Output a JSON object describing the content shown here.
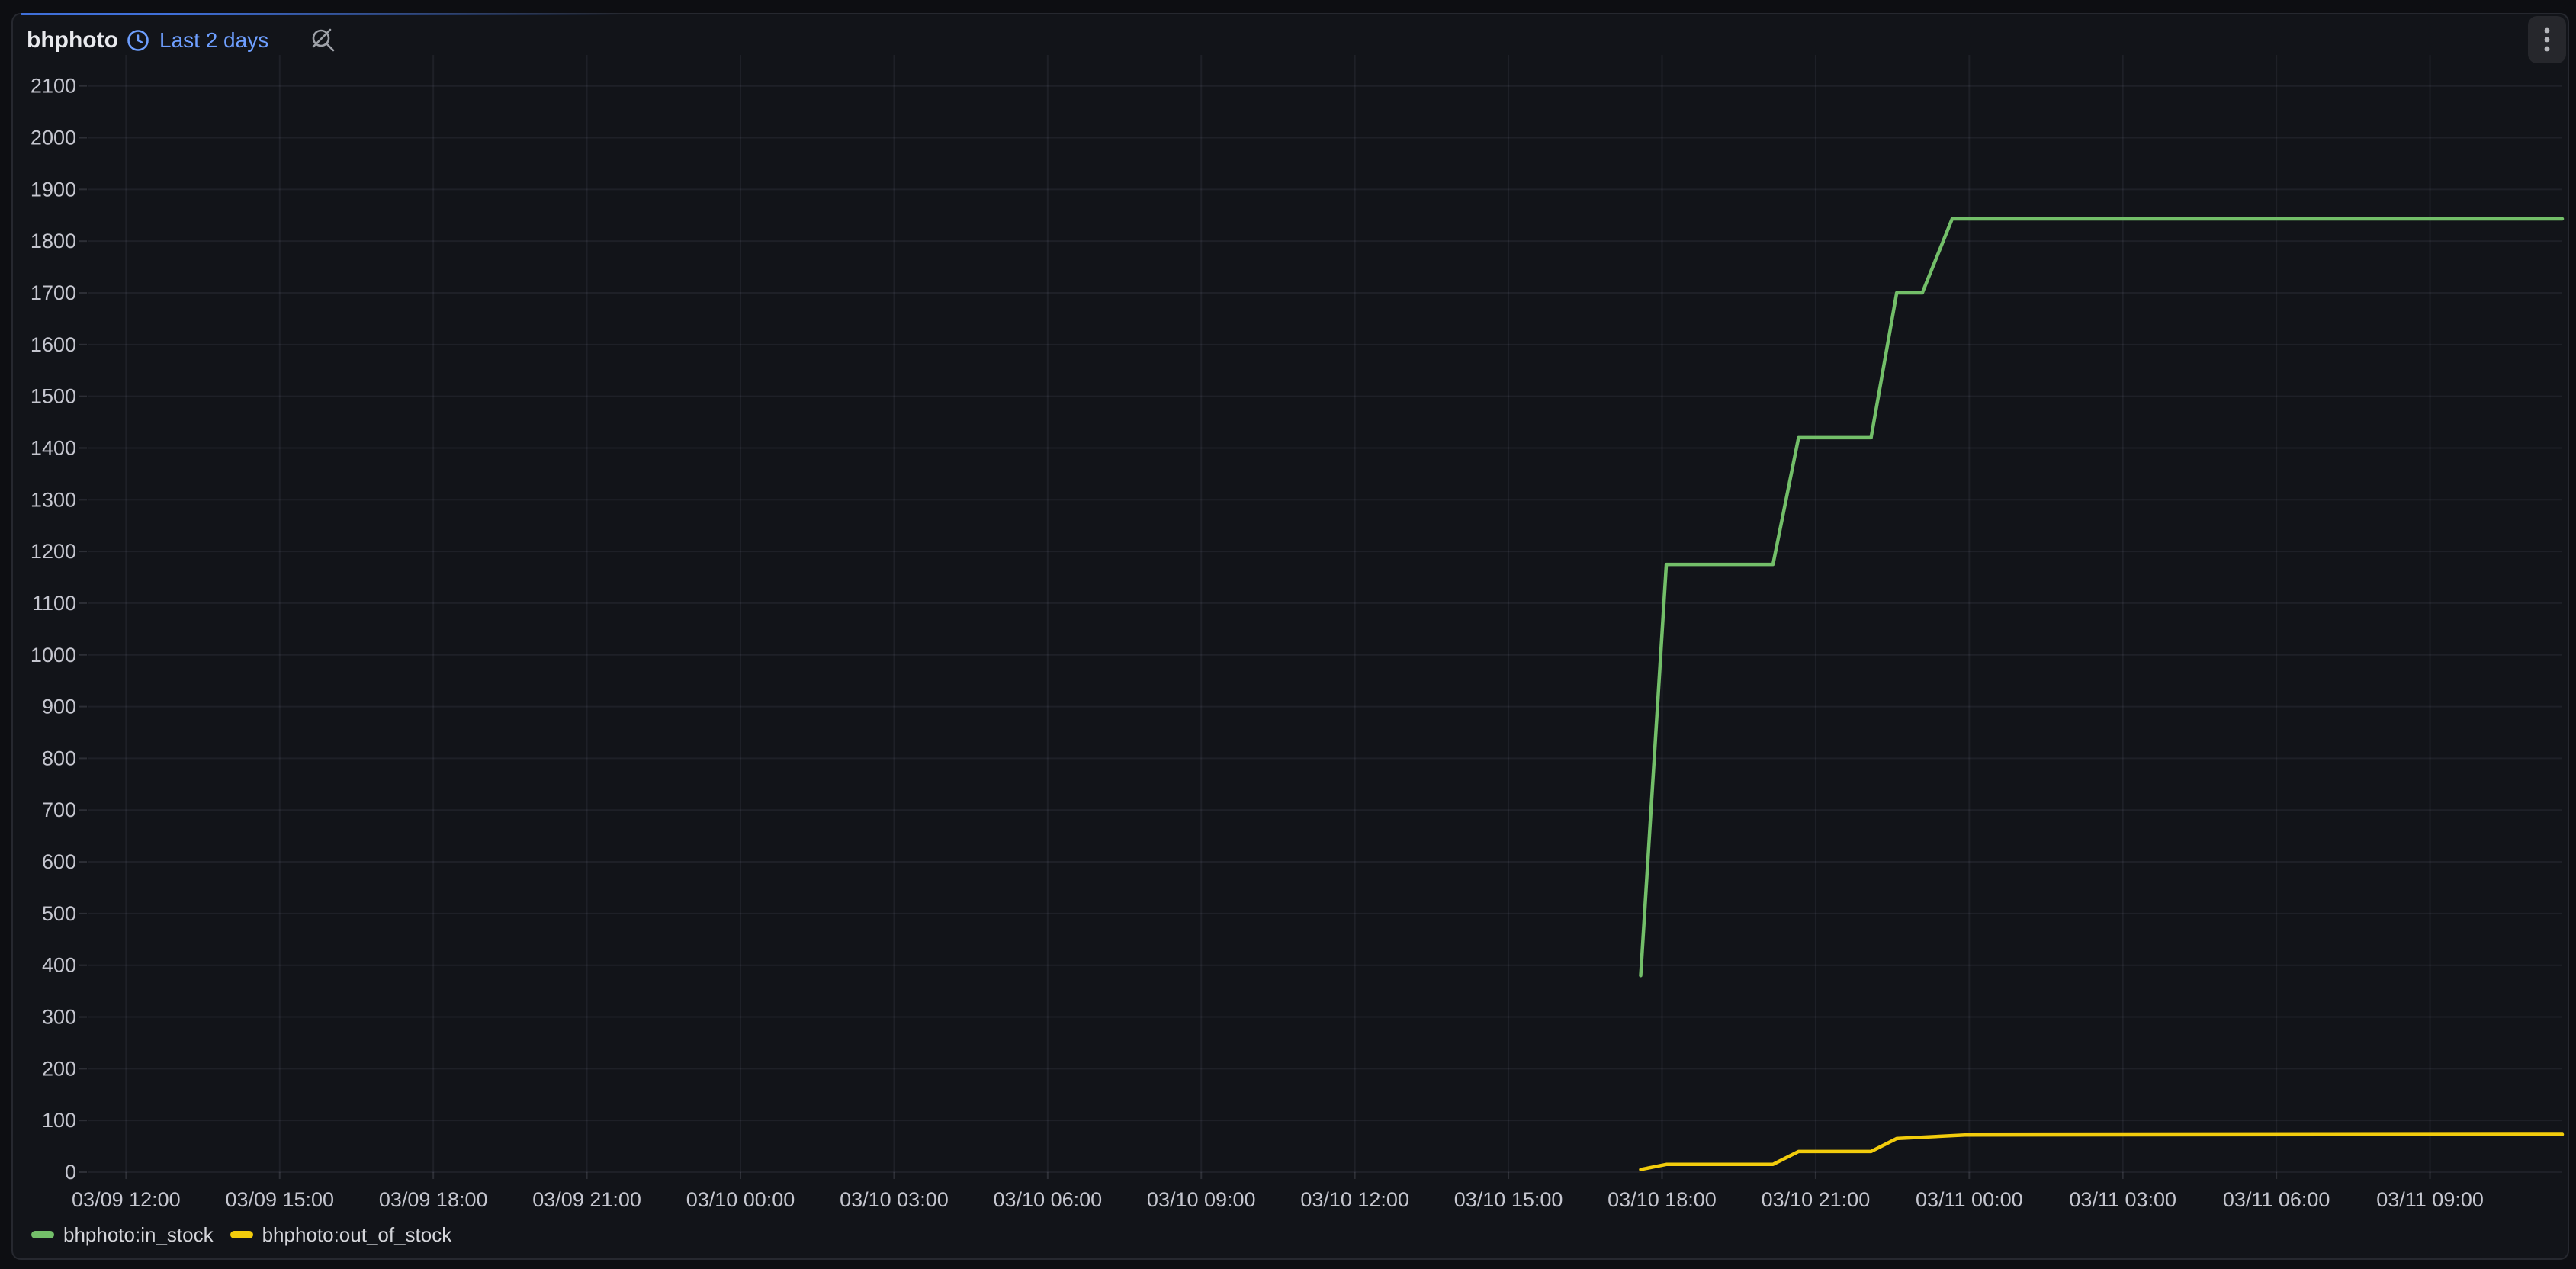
{
  "panel": {
    "title": "bhphoto",
    "time_range": "Last 2 days"
  },
  "colors": {
    "accent_blue": "#3f6fd8",
    "link_blue": "#6e9fff",
    "page_bg": "#0d0e12",
    "panel_bg": "#121419",
    "panel_border": "#26282f",
    "title_text": "#e9eaee",
    "axis_text": "#c5c6cf",
    "legend_text": "#d4d5da",
    "grid_line": "rgba(204,204,220,0.07)",
    "tick_mark": "rgba(204,204,220,0.15)",
    "menu_button_bg": "#26272c",
    "menu_dots": "#b6b7bc",
    "icon_grey": "#9ea1a8",
    "series_green": "#73bf69",
    "series_yellow": "#f2cc0c"
  },
  "icons": {
    "time_picker": "clock-icon",
    "zoom": "magnifier-slash-icon",
    "panel_menu": "kebab-menu-icon"
  },
  "legend": [
    {
      "label": "bhphoto:in_stock",
      "color": "#73bf69"
    },
    {
      "label": "bhphoto:out_of_stock",
      "color": "#f2cc0c"
    }
  ],
  "chart_data": {
    "type": "line",
    "title": "bhphoto",
    "x_type": "time",
    "xlabel": "",
    "ylabel": "",
    "grid": true,
    "legend_position": "bottom",
    "xlim": [
      "03/09 11:15",
      "03/11 11:35"
    ],
    "ylim": [
      0,
      2160
    ],
    "x_ticks": [
      "03/09 12:00",
      "03/09 15:00",
      "03/09 18:00",
      "03/09 21:00",
      "03/10 00:00",
      "03/10 03:00",
      "03/10 06:00",
      "03/10 09:00",
      "03/10 12:00",
      "03/10 15:00",
      "03/10 18:00",
      "03/10 21:00",
      "03/11 00:00",
      "03/11 03:00",
      "03/11 06:00",
      "03/11 09:00"
    ],
    "y_ticks": [
      0,
      100,
      200,
      300,
      400,
      500,
      600,
      700,
      800,
      900,
      1000,
      1100,
      1200,
      1300,
      1400,
      1500,
      1600,
      1700,
      1800,
      1900,
      2000,
      2100
    ],
    "series": [
      {
        "name": "bhphoto:in_stock",
        "color": "#73bf69",
        "points": [
          [
            "03/10 17:35",
            380
          ],
          [
            "03/10 18:05",
            1175
          ],
          [
            "03/10 20:10",
            1175
          ],
          [
            "03/10 20:40",
            1420
          ],
          [
            "03/10 22:05",
            1420
          ],
          [
            "03/10 22:35",
            1700
          ],
          [
            "03/10 23:05",
            1700
          ],
          [
            "03/10 23:40",
            1843
          ],
          [
            "03/11 11:35",
            1843
          ]
        ]
      },
      {
        "name": "bhphoto:out_of_stock",
        "color": "#f2cc0c",
        "points": [
          [
            "03/10 17:35",
            5
          ],
          [
            "03/10 18:05",
            15
          ],
          [
            "03/10 20:10",
            15
          ],
          [
            "03/10 20:40",
            40
          ],
          [
            "03/10 22:05",
            40
          ],
          [
            "03/10 22:35",
            65
          ],
          [
            "03/10 23:55",
            72
          ],
          [
            "03/11 11:35",
            73
          ]
        ]
      }
    ]
  }
}
